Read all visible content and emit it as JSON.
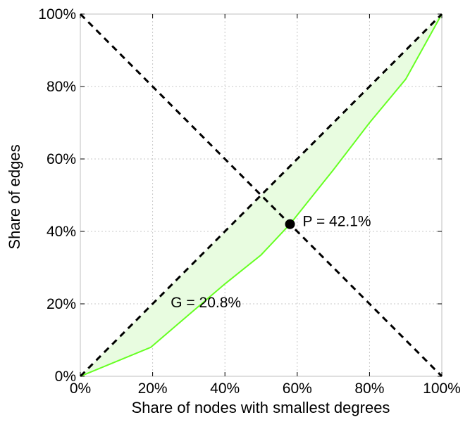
{
  "chart_data": {
    "type": "line",
    "xlabel": "Share of nodes with smallest degrees",
    "ylabel": "Share of edges",
    "xlim": [
      0,
      100
    ],
    "ylim": [
      0,
      100
    ],
    "x_ticks": [
      0,
      20,
      40,
      60,
      80,
      100
    ],
    "y_ticks": [
      0,
      20,
      40,
      60,
      80,
      100
    ],
    "x_tick_labels": [
      "0%",
      "20%",
      "40%",
      "60%",
      "80%",
      "100%"
    ],
    "y_tick_labels": [
      "0%",
      "20%",
      "40%",
      "60%",
      "80%",
      "100%"
    ],
    "grid": true,
    "series": [
      {
        "style": "solid",
        "color": "#66ff22",
        "fill": "#e8fce0",
        "x": [
          0,
          19.5,
          30,
          40,
          50,
          58,
          70,
          80,
          90,
          100
        ],
        "y": [
          0,
          8,
          17,
          25.5,
          33.5,
          42,
          57,
          70,
          82,
          100
        ]
      },
      {
        "style": "dashed",
        "color": "#000000",
        "x": [
          0,
          100
        ],
        "y": [
          0,
          100
        ]
      },
      {
        "style": "dashed",
        "color": "#000000",
        "x": [
          0,
          100
        ],
        "y": [
          100,
          0
        ]
      }
    ],
    "marker": {
      "x": 58,
      "y": 42,
      "color": "#000000"
    },
    "annotations": [
      {
        "text": "P = 42.1%",
        "x": 61.5,
        "y": 41.5
      },
      {
        "text": "G = 20.8%",
        "x": 25,
        "y": 19
      }
    ]
  }
}
